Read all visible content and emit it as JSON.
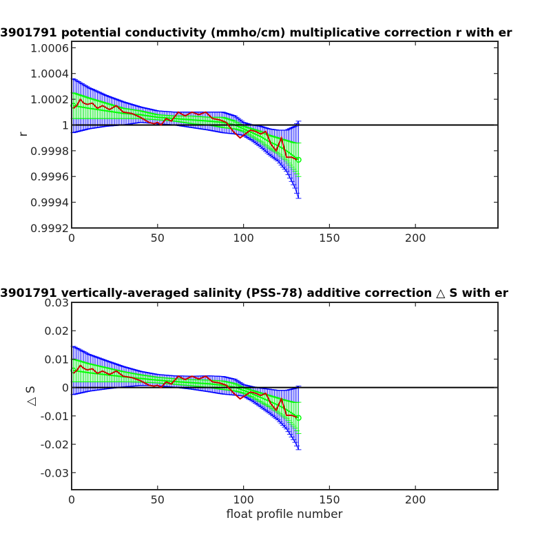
{
  "chart_data": [
    {
      "type": "line",
      "title": "3901791 potential conductivity (mmho/cm) multiplicative correction r with er",
      "xlabel": "",
      "ylabel": "r",
      "xlim": [
        0,
        248
      ],
      "ylim": [
        0.9992,
        1.00065
      ],
      "xticks": [
        0,
        50,
        100,
        150,
        200
      ],
      "xtick_labels": [
        "0",
        "50",
        "100",
        "150",
        "200"
      ],
      "yticks": [
        0.9992,
        0.9994,
        0.9996,
        0.9998,
        1.0,
        1.0002,
        1.0004,
        1.0006
      ],
      "ytick_labels": [
        "0.9992",
        "0.9994",
        "0.9996",
        "0.9998",
        "1",
        "1.0002",
        "1.0004",
        "1.0006"
      ],
      "reference_line": 1.0,
      "grid": false,
      "colors": {
        "fit": "#00ff00",
        "fit_error": "#0000ff",
        "profile": "#cc0000",
        "reference": "#000000"
      },
      "series": [
        {
          "role": "fitted correction with errorbars",
          "x": [
            1,
            10,
            20,
            30,
            40,
            50,
            60,
            70,
            80,
            88,
            95,
            100,
            105,
            110,
            115,
            120,
            125,
            130,
            132
          ],
          "values": [
            1.00015,
            1.00013,
            1.00011,
            1.00009,
            1.00008,
            1.00006,
            1.00005,
            1.00004,
            1.00003,
            1.00002,
            1.0,
            0.99997,
            0.99994,
            0.99991,
            0.99987,
            0.99984,
            0.9998,
            0.99975,
            0.99973
          ],
          "err_blue": [
            0.00021,
            0.00016,
            0.00012,
            9e-05,
            6e-05,
            5e-05,
            5e-05,
            6e-05,
            7e-05,
            8e-05,
            7e-05,
            5e-05,
            6e-05,
            8e-05,
            0.0001,
            0.00012,
            0.00016,
            0.00024,
            0.0003
          ],
          "err_green": [
            0.0001,
            8e-05,
            6e-05,
            4e-05,
            3e-05,
            2e-05,
            2e-05,
            3e-05,
            3e-05,
            4e-05,
            3e-05,
            2e-05,
            3e-05,
            4e-05,
            5e-05,
            6e-05,
            8e-05,
            0.00011,
            0.00013
          ]
        },
        {
          "role": "profile correction",
          "x": [
            1,
            3,
            5,
            7,
            9,
            12,
            15,
            18,
            22,
            26,
            30,
            35,
            40,
            45,
            48,
            50,
            52,
            55,
            58,
            62,
            66,
            70,
            74,
            78,
            82,
            86,
            90,
            94,
            98,
            101,
            104,
            107,
            110,
            113,
            116,
            119,
            122,
            125,
            128,
            131
          ],
          "values": [
            1.00013,
            1.00015,
            1.0002,
            1.00017,
            1.00016,
            1.00017,
            1.00013,
            1.00015,
            1.00012,
            1.00015,
            1.0001,
            1.00009,
            1.00006,
            1.00002,
            1.00001,
            1.00002,
            1.0,
            1.00005,
            1.00003,
            1.0001,
            1.00007,
            1.0001,
            1.00008,
            1.0001,
            1.00005,
            1.00004,
            1.00002,
            0.99995,
            0.9999,
            0.99993,
            0.99996,
            0.99995,
            0.99993,
            0.99995,
            0.99985,
            0.9998,
            0.9999,
            0.99975,
            0.99975,
            0.99973
          ]
        }
      ]
    },
    {
      "type": "line",
      "title": "3901791 vertically-averaged salinity (PSS-78) additive correction △ S with er",
      "xlabel": "float profile number",
      "ylabel": "△ S",
      "xlim": [
        0,
        248
      ],
      "ylim": [
        -0.036,
        0.03
      ],
      "xticks": [
        0,
        50,
        100,
        150,
        200
      ],
      "xtick_labels": [
        "0",
        "50",
        "100",
        "150",
        "200"
      ],
      "yticks": [
        -0.03,
        -0.02,
        -0.01,
        0,
        0.01,
        0.02,
        0.03
      ],
      "ytick_labels": [
        "-0.03",
        "-0.02",
        "-0.01",
        "0",
        "0.01",
        "0.02",
        "0.03"
      ],
      "reference_line": 0,
      "grid": false,
      "colors": {
        "fit": "#00ff00",
        "fit_error": "#0000ff",
        "profile": "#cc0000",
        "reference": "#000000"
      },
      "series": [
        {
          "role": "fitted correction with errorbars",
          "x": [
            1,
            10,
            20,
            30,
            40,
            50,
            60,
            70,
            80,
            88,
            95,
            100,
            105,
            110,
            115,
            120,
            125,
            130,
            132
          ],
          "values": [
            0.006,
            0.0052,
            0.0045,
            0.0038,
            0.0032,
            0.0026,
            0.0021,
            0.0017,
            0.0013,
            0.0008,
            0.0001,
            -0.001,
            -0.0022,
            -0.0035,
            -0.0048,
            -0.0062,
            -0.0078,
            -0.0098,
            -0.0107
          ],
          "err_blue": [
            0.0085,
            0.0065,
            0.005,
            0.0036,
            0.0025,
            0.002,
            0.002,
            0.0023,
            0.0028,
            0.0031,
            0.0028,
            0.002,
            0.0025,
            0.0033,
            0.0042,
            0.0052,
            0.0068,
            0.0095,
            0.0112
          ],
          "err_green": [
            0.004,
            0.0032,
            0.0025,
            0.0018,
            0.0013,
            0.001,
            0.001,
            0.0011,
            0.0013,
            0.0015,
            0.0013,
            0.001,
            0.0012,
            0.0016,
            0.002,
            0.0025,
            0.0032,
            0.0045,
            0.0055
          ]
        },
        {
          "role": "profile correction",
          "x": [
            1,
            3,
            5,
            7,
            9,
            12,
            15,
            18,
            22,
            26,
            30,
            35,
            40,
            45,
            48,
            50,
            52,
            55,
            58,
            62,
            66,
            70,
            74,
            78,
            82,
            86,
            90,
            94,
            98,
            101,
            104,
            107,
            110,
            113,
            116,
            119,
            122,
            125,
            128,
            131
          ],
          "values": [
            0.005,
            0.006,
            0.0078,
            0.0068,
            0.0062,
            0.0066,
            0.005,
            0.0058,
            0.0046,
            0.0058,
            0.004,
            0.0035,
            0.0024,
            0.0008,
            0.0005,
            0.0008,
            0.0,
            0.002,
            0.0012,
            0.004,
            0.0028,
            0.004,
            0.003,
            0.004,
            0.002,
            0.0016,
            0.0008,
            -0.0018,
            -0.004,
            -0.0028,
            -0.0016,
            -0.002,
            -0.0028,
            -0.002,
            -0.0058,
            -0.008,
            -0.004,
            -0.0098,
            -0.0098,
            -0.0105
          ]
        }
      ]
    }
  ]
}
